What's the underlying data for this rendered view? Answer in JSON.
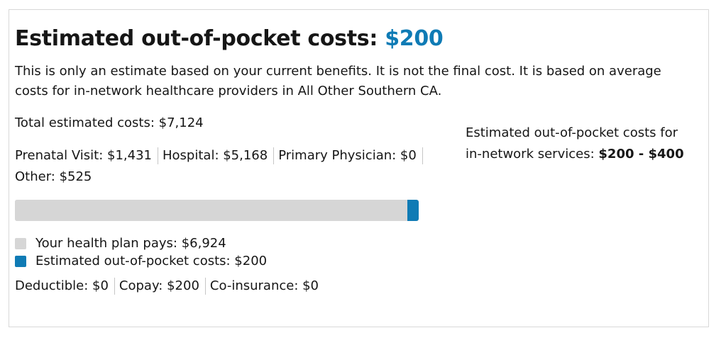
{
  "header": {
    "title": "Estimated out-of-pocket costs:",
    "title_amount": "$200"
  },
  "description": "This is only an estimate based on your current benefits. It is not the final cost. It is based on average costs for in-network healthcare providers in All Other Southern CA.",
  "total_estimated": "Total estimated costs: $7,124",
  "breakdown": [
    "Prenatal Visit: $1,431",
    "Hospital: $5,168",
    "Primary Physician: $0",
    "Other: $525"
  ],
  "oop_range": {
    "label": "Estimated out-of-pocket costs for in-network services:",
    "range": "$200 - $400"
  },
  "bar": {
    "plan_pays_value": 6924,
    "oop_value": 200,
    "total_value": 7124,
    "plan_color": "#d6d6d6",
    "oop_color": "#0f7bb5"
  },
  "legend": {
    "plan": "Your health plan pays: $6,924",
    "oop": "Estimated out-of-pocket costs: $200"
  },
  "cost_share": [
    "Deductible: $0",
    "Copay: $200",
    "Co-insurance: $0"
  ],
  "colors": {
    "accent": "#0f7bb5",
    "plan_gray": "#d6d6d6",
    "border": "#d8d8d8"
  }
}
